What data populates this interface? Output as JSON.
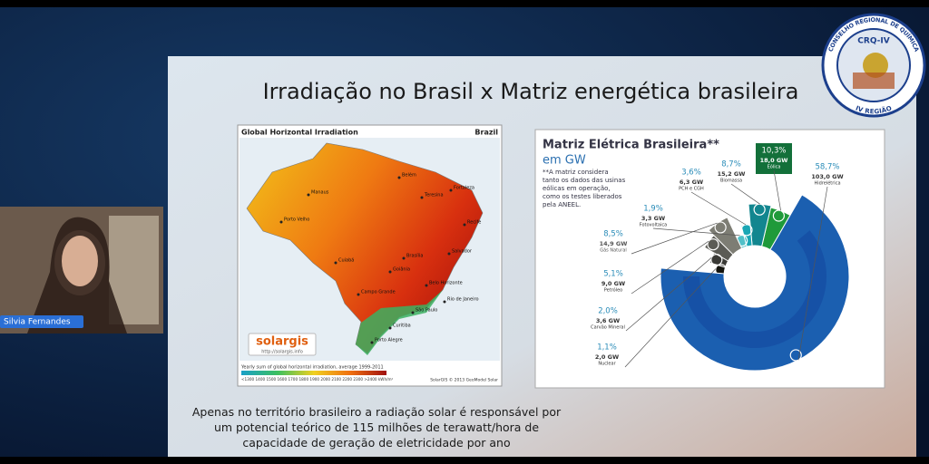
{
  "participant": {
    "name": "Silvia Fernandes"
  },
  "logo": {
    "acronym": "CRQ-IV",
    "ring_top": "CONSELHO REGIONAL DE QUÍMICA",
    "ring_bottom": "IV REGIÃO"
  },
  "slide": {
    "title": "Irradiação no Brasil x Matriz energética brasileira",
    "map": {
      "title": "Global Horizontal Irradiation",
      "country": "Brazil",
      "cities": [
        "Manaus",
        "Belém",
        "Fortaleza",
        "Teresina",
        "Recife",
        "Salvador",
        "Brasília",
        "Goiânia",
        "Cuiabá",
        "Campo Grande",
        "Belo Horizonte",
        "Rio de Janeiro",
        "São Paulo",
        "Curitiba",
        "Porto Alegre",
        "Porto Velho"
      ],
      "brand": "solargis",
      "url": "http://solargis.info",
      "legend_title": "Yearly sum of global horizontal irradiation, average 1999-2011",
      "legend_scale": "<1300 1400 1500 1600 1700 1800 1900 2000 2100 2200 2300 >2400 kWh/m²",
      "credit": "SolarGIS © 2013 GeoModel Solar"
    },
    "matrix": {
      "title": "Matriz Elétrica Brasileira**",
      "unit": "em GW",
      "note": "**A matriz considera tanto os dados das usinas eólicas em operação, como os testes liberados pela ANEEL.",
      "items": [
        {
          "share": "10,3%",
          "capacity": "18,0 GW",
          "source": "Eólica"
        },
        {
          "share": "8,7%",
          "capacity": "15,2 GW",
          "source": "Biomassa"
        },
        {
          "share": "3,6%",
          "capacity": "6,3 GW",
          "source": "PCH e CGH"
        },
        {
          "share": "1,9%",
          "capacity": "3,3 GW",
          "source": "Fotovoltaica"
        },
        {
          "share": "8,5%",
          "capacity": "14,9 GW",
          "source": "Gás Natural"
        },
        {
          "share": "5,1%",
          "capacity": "9,0 GW",
          "source": "Petróleo"
        },
        {
          "share": "2,0%",
          "capacity": "3,6 GW",
          "source": "Carvão Mineral"
        },
        {
          "share": "1,1%",
          "capacity": "2,0 GW",
          "source": "Nuclear"
        },
        {
          "share": "58,7%",
          "capacity": "103,0 GW",
          "source": "Hidrelétrica"
        }
      ]
    },
    "caption": "Apenas no território brasileiro a radiação solar é responsável por um potencial teórico de 115 milhões de terawatt/hora de capacidade de geração de eletricidade por ano"
  }
}
